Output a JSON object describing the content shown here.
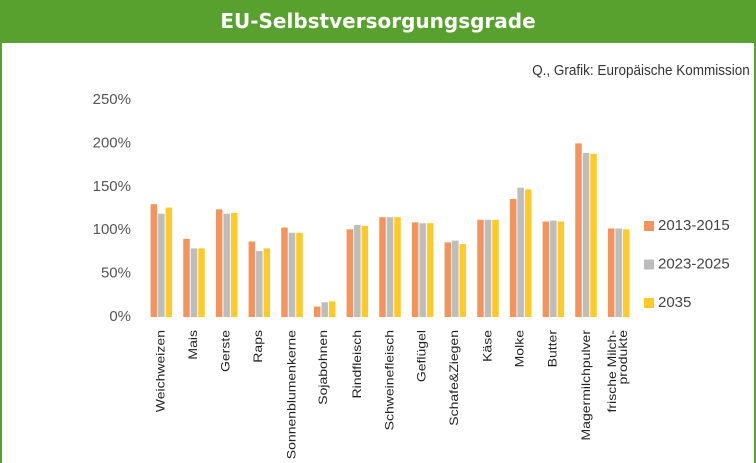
{
  "chart_data": {
    "type": "bar",
    "title": "EU-Selbstversorgungsgrade",
    "source": "Q., Grafik: Europäische Kommission",
    "categories": [
      "Weichweizen",
      "Mais",
      "Gerste",
      "Raps",
      "Sonnenblumenkerne",
      "Sojabohnen",
      "Rindfleisch",
      "Schweinefleisch",
      "Geflügel",
      "Schafe&Ziegen",
      "Käse",
      "Molke",
      "Butter",
      "Magermilchpulver",
      "frische Milch-\nprodukte"
    ],
    "series": [
      {
        "name": "2013-2015",
        "color": "#f4935a",
        "values": [
          130,
          90,
          124,
          87,
          103,
          12,
          101,
          115,
          109,
          86,
          112,
          136,
          110,
          200,
          102
        ]
      },
      {
        "name": "2023-2025",
        "color": "#bdbdbd",
        "values": [
          119,
          79,
          119,
          76,
          97,
          17,
          106,
          115,
          108,
          88,
          112,
          149,
          111,
          189,
          102
        ]
      },
      {
        "name": "2035",
        "color": "#ffc926",
        "values": [
          126,
          79,
          120,
          79,
          97,
          18,
          105,
          115,
          108,
          84,
          112,
          147,
          110,
          188,
          101
        ]
      }
    ],
    "ylim": [
      0,
      250
    ],
    "yticks": [
      {
        "value": 0,
        "label": "0%"
      },
      {
        "value": 50,
        "label": "50%"
      },
      {
        "value": 100,
        "label": "100%"
      },
      {
        "value": 150,
        "label": "150%"
      },
      {
        "value": 200,
        "label": "200%"
      },
      {
        "value": 250,
        "label": "250%"
      }
    ],
    "legend": "right"
  }
}
